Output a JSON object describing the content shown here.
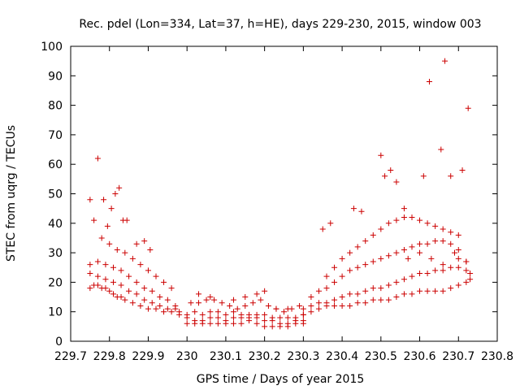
{
  "chart_data": {
    "type": "scatter",
    "title": "Rec. pdel (Lon=334, Lat=37, h=HE), days 229-230, 2015, window 003",
    "xlabel": "GPS time / Days of year 2015",
    "ylabel": "STEC from uqrg / TECUs",
    "xlim": [
      229.7,
      230.8
    ],
    "ylim": [
      0,
      100
    ],
    "xticks": [
      229.7,
      229.8,
      229.9,
      230,
      230.1,
      230.2,
      230.3,
      230.4,
      230.5,
      230.6,
      230.7,
      230.8
    ],
    "xtick_labels": [
      "229.7",
      "229.8",
      "229.9",
      "230",
      "230.1",
      "230.2",
      "230.3",
      "230.4",
      "230.5",
      "230.6",
      "230.7",
      "230.8"
    ],
    "yticks": [
      0,
      10,
      20,
      30,
      40,
      50,
      60,
      70,
      80,
      90,
      100
    ],
    "ytick_labels": [
      "0",
      "10",
      "20",
      "30",
      "40",
      "50",
      "60",
      "70",
      "80",
      "90",
      "100"
    ],
    "grid": false,
    "marker": "plus",
    "color": "#cc0000",
    "series": [
      {
        "name": "",
        "x": [
          229.75,
          229.76,
          229.77,
          229.78,
          229.79,
          229.8,
          229.81,
          229.82,
          229.83,
          229.84,
          229.86,
          229.88,
          229.9,
          229.92,
          229.94,
          229.96,
          229.98
        ],
        "y": [
          18,
          19,
          19,
          18,
          18,
          17,
          16,
          15,
          15,
          14,
          13,
          12,
          11,
          11,
          10,
          10,
          9
        ]
      },
      {
        "name": "",
        "x": [
          229.75,
          229.77,
          229.79,
          229.81,
          229.83,
          229.85,
          229.87,
          229.89,
          229.91,
          229.93,
          229.95,
          229.97,
          229.98
        ],
        "y": [
          23,
          22,
          21,
          20,
          19,
          17,
          16,
          14,
          13,
          12,
          11,
          11,
          10
        ]
      },
      {
        "name": "",
        "x": [
          229.75,
          229.77,
          229.79,
          229.81,
          229.83,
          229.85,
          229.87,
          229.89,
          229.91,
          229.93,
          229.95,
          229.97
        ],
        "y": [
          26,
          27,
          26,
          25,
          24,
          22,
          20,
          18,
          17,
          15,
          14,
          12
        ]
      },
      {
        "name": "",
        "x": [
          229.76,
          229.78,
          229.8,
          229.82,
          229.84,
          229.86,
          229.88,
          229.9,
          229.92,
          229.94,
          229.96
        ],
        "y": [
          41,
          35,
          33,
          31,
          30,
          28,
          26,
          24,
          22,
          20,
          18
        ]
      },
      {
        "name": "",
        "x": [
          229.75,
          229.77,
          229.785,
          229.795,
          229.805,
          229.815,
          229.825,
          229.835,
          229.845,
          229.87,
          229.89,
          229.905
        ],
        "y": [
          48,
          62,
          48,
          39,
          45,
          50,
          52,
          41,
          41,
          33,
          34,
          31
        ]
      },
      {
        "name": "",
        "x": [
          230.0,
          230.02,
          230.04,
          230.06,
          230.08,
          230.1,
          230.12,
          230.14,
          230.16,
          230.18,
          230.2,
          230.22,
          230.24,
          230.26,
          230.28,
          230.3
        ],
        "y": [
          6,
          6,
          6,
          6,
          6,
          6,
          6,
          6,
          7,
          6,
          5,
          5,
          5,
          5,
          6,
          6
        ]
      },
      {
        "name": "",
        "x": [
          230.0,
          230.02,
          230.04,
          230.06,
          230.08,
          230.1,
          230.12,
          230.14,
          230.16,
          230.18,
          230.2,
          230.22,
          230.24,
          230.26,
          230.28,
          230.3
        ],
        "y": [
          8,
          7,
          7,
          8,
          8,
          7,
          8,
          8,
          8,
          8,
          7,
          7,
          6,
          6,
          7,
          7
        ]
      },
      {
        "name": "",
        "x": [
          230.0,
          230.02,
          230.04,
          230.06,
          230.08,
          230.1,
          230.12,
          230.14,
          230.16,
          230.18,
          230.2,
          230.22,
          230.24,
          230.26,
          230.28,
          230.3
        ],
        "y": [
          9,
          10,
          9,
          10,
          10,
          9,
          10,
          9,
          9,
          9,
          9,
          8,
          8,
          8,
          8,
          9
        ]
      },
      {
        "name": "",
        "x": [
          230.01,
          230.03,
          230.05,
          230.07,
          230.09,
          230.11,
          230.13,
          230.15,
          230.17,
          230.19,
          230.21,
          230.23,
          230.25,
          230.27,
          230.29
        ],
        "y": [
          13,
          13,
          14,
          14,
          13,
          12,
          11,
          12,
          13,
          14,
          12,
          11,
          10,
          11,
          12
        ]
      },
      {
        "name": "",
        "x": [
          230.03,
          230.06,
          230.12,
          230.15,
          230.18,
          230.2,
          230.23,
          230.26
        ],
        "y": [
          16,
          15,
          14,
          15,
          16,
          17,
          11,
          11
        ]
      },
      {
        "name": "",
        "x": [
          230.3,
          230.32,
          230.34,
          230.36,
          230.38,
          230.4,
          230.42,
          230.44,
          230.46,
          230.48,
          230.5,
          230.52,
          230.54,
          230.56,
          230.58,
          230.6,
          230.62,
          230.64,
          230.66,
          230.68,
          230.7,
          230.72,
          230.73
        ],
        "y": [
          9,
          10,
          11,
          12,
          12,
          12,
          12,
          13,
          13,
          14,
          14,
          14,
          15,
          16,
          16,
          17,
          17,
          17,
          17,
          18,
          19,
          20,
          21
        ]
      },
      {
        "name": "",
        "x": [
          230.3,
          230.32,
          230.34,
          230.36,
          230.38,
          230.4,
          230.42,
          230.44,
          230.46,
          230.48,
          230.5,
          230.52,
          230.54,
          230.56,
          230.58,
          230.6,
          230.62,
          230.64,
          230.66,
          230.68,
          230.7,
          230.72,
          230.73
        ],
        "y": [
          11,
          12,
          13,
          13,
          14,
          15,
          16,
          16,
          17,
          18,
          18,
          19,
          20,
          21,
          22,
          23,
          23,
          24,
          24,
          25,
          25,
          24,
          23
        ]
      },
      {
        "name": "",
        "x": [
          230.32,
          230.34,
          230.36,
          230.38,
          230.4,
          230.42,
          230.44,
          230.46,
          230.48,
          230.5,
          230.52,
          230.54,
          230.56,
          230.58,
          230.6,
          230.62,
          230.64,
          230.66,
          230.68,
          230.7,
          230.72
        ],
        "y": [
          15,
          17,
          18,
          20,
          22,
          24,
          25,
          26,
          27,
          28,
          29,
          30,
          31,
          32,
          33,
          33,
          34,
          34,
          33,
          31,
          27
        ]
      },
      {
        "name": "",
        "x": [
          230.36,
          230.38,
          230.4,
          230.42,
          230.44,
          230.46,
          230.48,
          230.5,
          230.52,
          230.54,
          230.56,
          230.58,
          230.6,
          230.62,
          230.64,
          230.66,
          230.68,
          230.7
        ],
        "y": [
          22,
          25,
          28,
          30,
          32,
          34,
          36,
          38,
          40,
          41,
          42,
          42,
          41,
          40,
          39,
          38,
          37,
          36
        ]
      },
      {
        "name": "",
        "x": [
          230.35,
          230.37,
          230.43,
          230.45,
          230.5,
          230.51,
          230.525,
          230.54,
          230.56,
          230.61,
          230.625,
          230.655,
          230.665,
          230.68,
          230.71,
          230.725
        ],
        "y": [
          38,
          40,
          45,
          44,
          63,
          56,
          58,
          54,
          45,
          56,
          88,
          65,
          95,
          56,
          58,
          79
        ]
      },
      {
        "name": "",
        "x": [
          230.57,
          230.6,
          230.63,
          230.66,
          230.69,
          230.7,
          230.72
        ],
        "y": [
          28,
          30,
          28,
          26,
          30,
          28,
          27
        ]
      }
    ]
  }
}
